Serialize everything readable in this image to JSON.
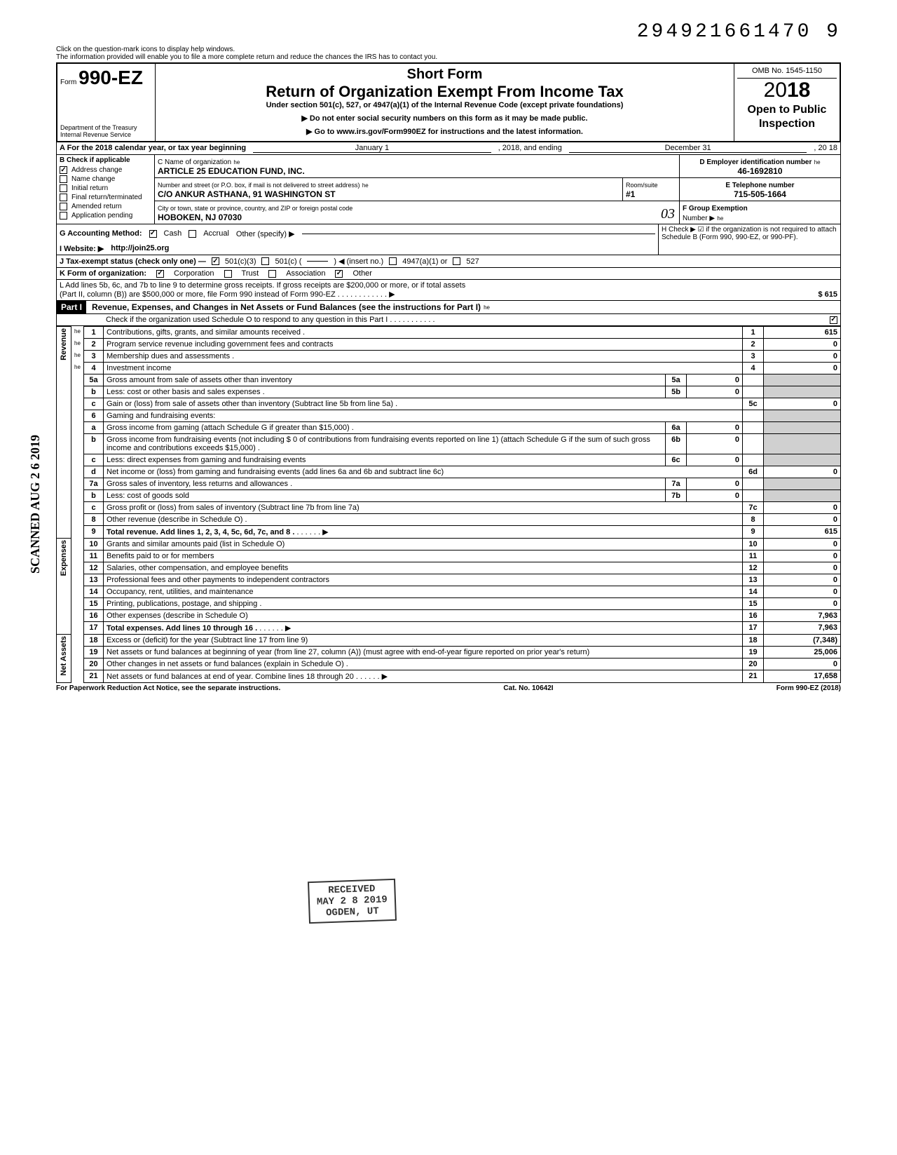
{
  "top_tracking": "294921661470 9",
  "help_line1": "Click on the question-mark icons to display help windows.",
  "help_line2": "The information provided will enable you to file a more complete return and reduce the chances the IRS has to contact you.",
  "form_prefix": "Form",
  "form_number": "990-EZ",
  "short_form": "Short Form",
  "title": "Return of Organization Exempt From Income Tax",
  "subtitle": "Under section 501(c), 527, or 4947(a)(1) of the Internal Revenue Code (except private foundations)",
  "arrow1": "▶ Do not enter social security numbers on this form as it may be made public.",
  "arrow2": "▶ Go to www.irs.gov/Form990EZ for instructions and the latest information.",
  "dept1": "Department of the Treasury",
  "dept2": "Internal Revenue Service",
  "omb": "OMB No. 1545-1150",
  "year_prefix": "20",
  "year_bold": "18",
  "open1": "Open to Public",
  "open2": "Inspection",
  "line_a": "A  For the 2018 calendar year, or tax year beginning",
  "line_a_begin": "January 1",
  "line_a_mid": ", 2018, and ending",
  "line_a_end": "December 31",
  "line_a_year": ", 20   18",
  "b_label": "B  Check if applicable",
  "b_items": [
    "Address change",
    "Name change",
    "Initial return",
    "Final return/terminated",
    "Amended return",
    "Application pending"
  ],
  "b_checked": [
    true,
    false,
    false,
    false,
    false,
    false
  ],
  "c_label": "C  Name of organization",
  "c_name": "ARTICLE 25 EDUCATION FUND, INC.",
  "c_street_label": "Number and street (or P.O. box, if mail is not delivered to street address)",
  "c_street": "C/O ANKUR ASTHANA, 91 WASHINGTON ST",
  "c_room_label": "Room/suite",
  "c_room": "#1",
  "c_city_label": "City or town, state or province, country, and ZIP or foreign postal code",
  "c_city": "HOBOKEN, NJ 07030",
  "c_city_hand": "03",
  "d_label": "D Employer identification number",
  "d_ein": "46-1692810",
  "e_label": "E  Telephone number",
  "e_phone": "715-505-1664",
  "f_label": "F  Group Exemption",
  "f_sub": "Number ▶",
  "g_label": "G  Accounting Method:",
  "g_cash": "Cash",
  "g_accrual": "Accrual",
  "g_other": "Other (specify) ▶",
  "h_label": "H  Check ▶ ☑ if the organization is not required to attach Schedule B (Form 990, 990-EZ, or 990-PF).",
  "i_label": "I   Website: ▶",
  "i_site": "http://join25.org",
  "j_label": "J  Tax-exempt status (check only one) —",
  "j_501c3": "501(c)(3)",
  "j_501c": "501(c) (",
  "j_insert": ") ◀ (insert no.)",
  "j_4947": "4947(a)(1) or",
  "j_527": "527",
  "k_label": "K  Form of organization:",
  "k_corp": "Corporation",
  "k_trust": "Trust",
  "k_assoc": "Association",
  "k_other": "Other",
  "l_line1": "L  Add lines 5b, 6c, and 7b to line 9 to determine gross receipts. If gross receipts are $200,000 or more, or if total assets",
  "l_line2": "(Part II, column (B)) are $500,000 or more, file Form 990 instead of Form 990-EZ .   .   .   .   .   .   .   .   .   .   .   .   ▶",
  "l_amount": "615",
  "part1_label": "Part I",
  "part1_title": "Revenue, Expenses, and Changes in Net Assets or Fund Balances (see the instructions for Part I)",
  "part1_check": "Check if the organization used Schedule O to respond to any question in this Part I .  .  .  .  .  .  .  .  .  .  .",
  "scanned": "SCANNED AUG 2 6 2019",
  "stamp_l1": "RECEIVED",
  "stamp_l2": "MAY 2 8 2019",
  "stamp_l3": "OGDEN, UT",
  "sections": {
    "revenue": "Revenue",
    "expenses": "Expenses",
    "netassets": "Net Assets"
  },
  "rows": [
    {
      "n": "1",
      "desc": "Contributions, gifts, grants, and similar amounts received .",
      "box": "1",
      "val": "615"
    },
    {
      "n": "2",
      "desc": "Program service revenue including government fees and contracts",
      "box": "2",
      "val": "0"
    },
    {
      "n": "3",
      "desc": "Membership dues and assessments .",
      "box": "3",
      "val": "0"
    },
    {
      "n": "4",
      "desc": "Investment income",
      "box": "4",
      "val": "0"
    },
    {
      "n": "5a",
      "desc": "Gross amount from sale of assets other than inventory",
      "mbox": "5a",
      "mval": "0"
    },
    {
      "n": "b",
      "desc": "Less: cost or other basis and sales expenses .",
      "mbox": "5b",
      "mval": "0"
    },
    {
      "n": "c",
      "desc": "Gain or (loss) from sale of assets other than inventory (Subtract line 5b from line 5a) .",
      "box": "5c",
      "val": "0"
    },
    {
      "n": "6",
      "desc": "Gaming and fundraising events:"
    },
    {
      "n": "a",
      "desc": "Gross income from gaming (attach Schedule G if greater than $15,000) .",
      "mbox": "6a",
      "mval": "0"
    },
    {
      "n": "b",
      "desc": "Gross income from fundraising events (not including  $                    0  of contributions from fundraising events reported on line 1) (attach Schedule G if the sum of such gross income and contributions exceeds $15,000) .",
      "mbox": "6b",
      "mval": "0"
    },
    {
      "n": "c",
      "desc": "Less: direct expenses from gaming and fundraising events",
      "mbox": "6c",
      "mval": "0"
    },
    {
      "n": "d",
      "desc": "Net income or (loss) from gaming and fundraising events (add lines 6a and 6b and subtract line 6c)",
      "box": "6d",
      "val": "0"
    },
    {
      "n": "7a",
      "desc": "Gross sales of inventory, less returns and allowances .",
      "mbox": "7a",
      "mval": "0"
    },
    {
      "n": "b",
      "desc": "Less: cost of goods sold",
      "mbox": "7b",
      "mval": "0"
    },
    {
      "n": "c",
      "desc": "Gross profit or (loss) from sales of inventory (Subtract line 7b from line 7a)",
      "box": "7c",
      "val": "0"
    },
    {
      "n": "8",
      "desc": "Other revenue (describe in Schedule O) .",
      "box": "8",
      "val": "0"
    },
    {
      "n": "9",
      "desc": "Total revenue. Add lines 1, 2, 3, 4, 5c, 6d, 7c, and 8 .",
      "box": "9",
      "val": "615",
      "bold": true,
      "arrow": true
    },
    {
      "n": "10",
      "desc": "Grants and similar amounts paid (list in Schedule O)",
      "box": "10",
      "val": "0"
    },
    {
      "n": "11",
      "desc": "Benefits paid to or for members",
      "box": "11",
      "val": "0"
    },
    {
      "n": "12",
      "desc": "Salaries, other compensation, and employee benefits",
      "box": "12",
      "val": "0"
    },
    {
      "n": "13",
      "desc": "Professional fees and other payments to independent contractors",
      "box": "13",
      "val": "0"
    },
    {
      "n": "14",
      "desc": "Occupancy, rent, utilities, and maintenance",
      "box": "14",
      "val": "0"
    },
    {
      "n": "15",
      "desc": "Printing, publications, postage, and shipping .",
      "box": "15",
      "val": "0"
    },
    {
      "n": "16",
      "desc": "Other expenses (describe in Schedule O)",
      "box": "16",
      "val": "7,963"
    },
    {
      "n": "17",
      "desc": "Total expenses. Add lines 10 through 16 .",
      "box": "17",
      "val": "7,963",
      "bold": true,
      "arrow": true
    },
    {
      "n": "18",
      "desc": "Excess or (deficit) for the year (Subtract line 17 from line 9)",
      "box": "18",
      "val": "(7,348)"
    },
    {
      "n": "19",
      "desc": "Net assets or fund balances at beginning of year (from line 27, column (A)) (must agree with end-of-year figure reported on prior year's return)",
      "box": "19",
      "val": "25,006"
    },
    {
      "n": "20",
      "desc": "Other changes in net assets or fund balances (explain in Schedule O) .",
      "box": "20",
      "val": "0"
    },
    {
      "n": "21",
      "desc": "Net assets or fund balances at end of year. Combine lines 18 through 20",
      "box": "21",
      "val": "17,658",
      "arrow": true
    }
  ],
  "footer_left": "For Paperwork Reduction Act Notice, see the separate instructions.",
  "footer_mid": "Cat. No. 10642I",
  "footer_right": "Form 990-EZ (2018)"
}
